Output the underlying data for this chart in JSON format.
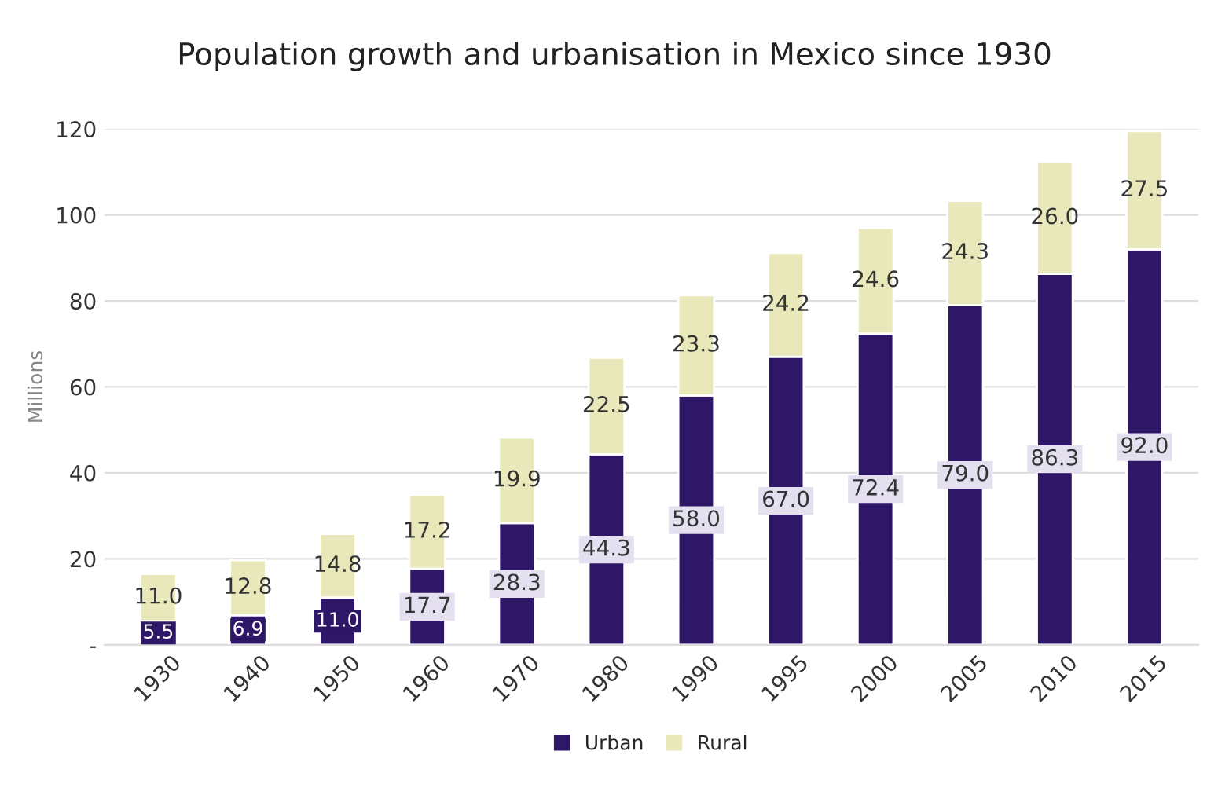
{
  "chart_data": {
    "type": "bar",
    "title": "Population growth and urbanisation in Mexico since 1930",
    "ylabel": "Millions",
    "categories": [
      "1930",
      "1940",
      "1950",
      "1960",
      "1970",
      "1980",
      "1990",
      "1995",
      "2000",
      "2005",
      "2010",
      "2015"
    ],
    "stacked": true,
    "series": [
      {
        "name": "Urban",
        "color": "#2e1767",
        "values": [
          5.5,
          6.9,
          11.0,
          17.7,
          28.3,
          44.3,
          58.0,
          67.0,
          72.4,
          79.0,
          86.3,
          92.0
        ],
        "value_labels": [
          "5.5",
          "6.9",
          "11.0",
          "17.7",
          "28.3",
          "44.3",
          "58.0",
          "67.0",
          "72.4",
          "79.0",
          "86.3",
          "92.0"
        ]
      },
      {
        "name": "Rural",
        "color": "#e8e8bb",
        "values": [
          11.0,
          12.8,
          14.8,
          17.2,
          19.9,
          22.5,
          23.3,
          24.2,
          24.6,
          24.3,
          26.0,
          27.5
        ],
        "value_labels": [
          "11.0",
          "12.8",
          "14.8",
          "17.2",
          "19.9",
          "22.5",
          "23.3",
          "24.2",
          "24.6",
          "24.3",
          "26.0",
          "27.5"
        ]
      }
    ],
    "ylim": [
      0,
      120
    ],
    "yticks": [
      {
        "value": 0,
        "label": "-"
      },
      20,
      40,
      60,
      80,
      100,
      120
    ],
    "grid": "y",
    "legend": "bottom"
  }
}
